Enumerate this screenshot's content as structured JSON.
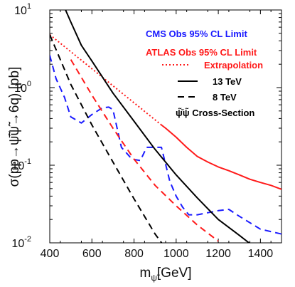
{
  "chart_data": {
    "type": "line",
    "title": "",
    "xlabel": "m",
    "xlabel_subscript": "ψ̃",
    "xlabel_unit": "[GeV]",
    "ylabel": "σ(pp→ψ̄̃ψ̃→6q) [pb]",
    "xlim": [
      400,
      1500
    ],
    "ylim": [
      0.01,
      10
    ],
    "yscale": "log",
    "grid": false,
    "legend_position": "top-right",
    "x_ticks": [
      400,
      600,
      800,
      1000,
      1200,
      1400
    ],
    "x_tick_labels": [
      "400",
      "600",
      "800",
      "1000",
      "1200",
      "1400"
    ],
    "y_ticks": [
      0.01,
      0.1,
      1,
      10
    ],
    "y_tick_labels_base": [
      "10",
      "10",
      "10",
      "10"
    ],
    "y_tick_labels_exp": [
      "-2",
      "-1",
      "0",
      "1"
    ],
    "series": [
      {
        "name": "CMS Obs 95% CL Limit",
        "color": "#1a1aff",
        "style": "dashed",
        "x": [
          400,
          430,
          470,
          500,
          550,
          600,
          650,
          680,
          700,
          740,
          790,
          830,
          860,
          900,
          930,
          970,
          1000,
          1030,
          1060,
          1100,
          1200,
          1250,
          1300,
          1400,
          1500
        ],
        "y": [
          2.6,
          1.3,
          0.75,
          0.42,
          0.35,
          0.45,
          0.55,
          0.56,
          0.52,
          0.17,
          0.12,
          0.115,
          0.17,
          0.17,
          0.17,
          0.062,
          0.04,
          0.029,
          0.023,
          0.023,
          0.026,
          0.027,
          0.022,
          0.015,
          0.013
        ]
      },
      {
        "name": "ATLAS Obs 95% CL Limit",
        "color": "#ff1a1a",
        "style": "solid",
        "x": [
          930,
          950,
          1000,
          1050,
          1100,
          1150,
          1200,
          1250,
          1300,
          1350,
          1400,
          1450,
          1500
        ],
        "y": [
          0.33,
          0.3,
          0.23,
          0.17,
          0.13,
          0.11,
          0.095,
          0.085,
          0.075,
          0.066,
          0.06,
          0.055,
          0.049
        ]
      },
      {
        "name": "Extrapolation",
        "color": "#ff1a1a",
        "style": "dotted",
        "x": [
          400,
          930
        ],
        "y": [
          4.8,
          0.33
        ]
      },
      {
        "name": "13 TeV",
        "color": "#000000",
        "style": "solid",
        "x": [
          475,
          500,
          550,
          600,
          700,
          800,
          900,
          1000,
          1100,
          1200,
          1300,
          1350
        ],
        "y": [
          10,
          7.0,
          3.5,
          2.2,
          0.85,
          0.37,
          0.16,
          0.075,
          0.038,
          0.02,
          0.0125,
          0.0098
        ]
      },
      {
        "name": "8 TeV",
        "color": "#000000",
        "style": "dashed",
        "x": [
          400,
          500,
          600,
          700,
          800,
          900,
          950
        ],
        "y": [
          4.8,
          1.1,
          0.33,
          0.11,
          0.037,
          0.013,
          0.0085
        ]
      },
      {
        "name": "8 TeV",
        "color": "#ff1a1a",
        "style": "dashed",
        "x": [
          500,
          600,
          700,
          800,
          900,
          1000,
          1100,
          1200
        ],
        "y": [
          2.3,
          0.8,
          0.3,
          0.12,
          0.055,
          0.03,
          0.017,
          0.0105
        ]
      }
    ],
    "legend": {
      "cms": "CMS Obs 95% CL Limit",
      "atlas": "ATLAS Obs 95% CL Limit",
      "extrapolation": "Extrapolation",
      "tev13": "13 TeV",
      "tev8": "8 TeV",
      "cross_section": "ψ̄̃ψ̃ Cross-Section",
      "cms_color": "#1a1aff",
      "atlas_color": "#ff1a1a",
      "line_color": "#000000"
    }
  }
}
